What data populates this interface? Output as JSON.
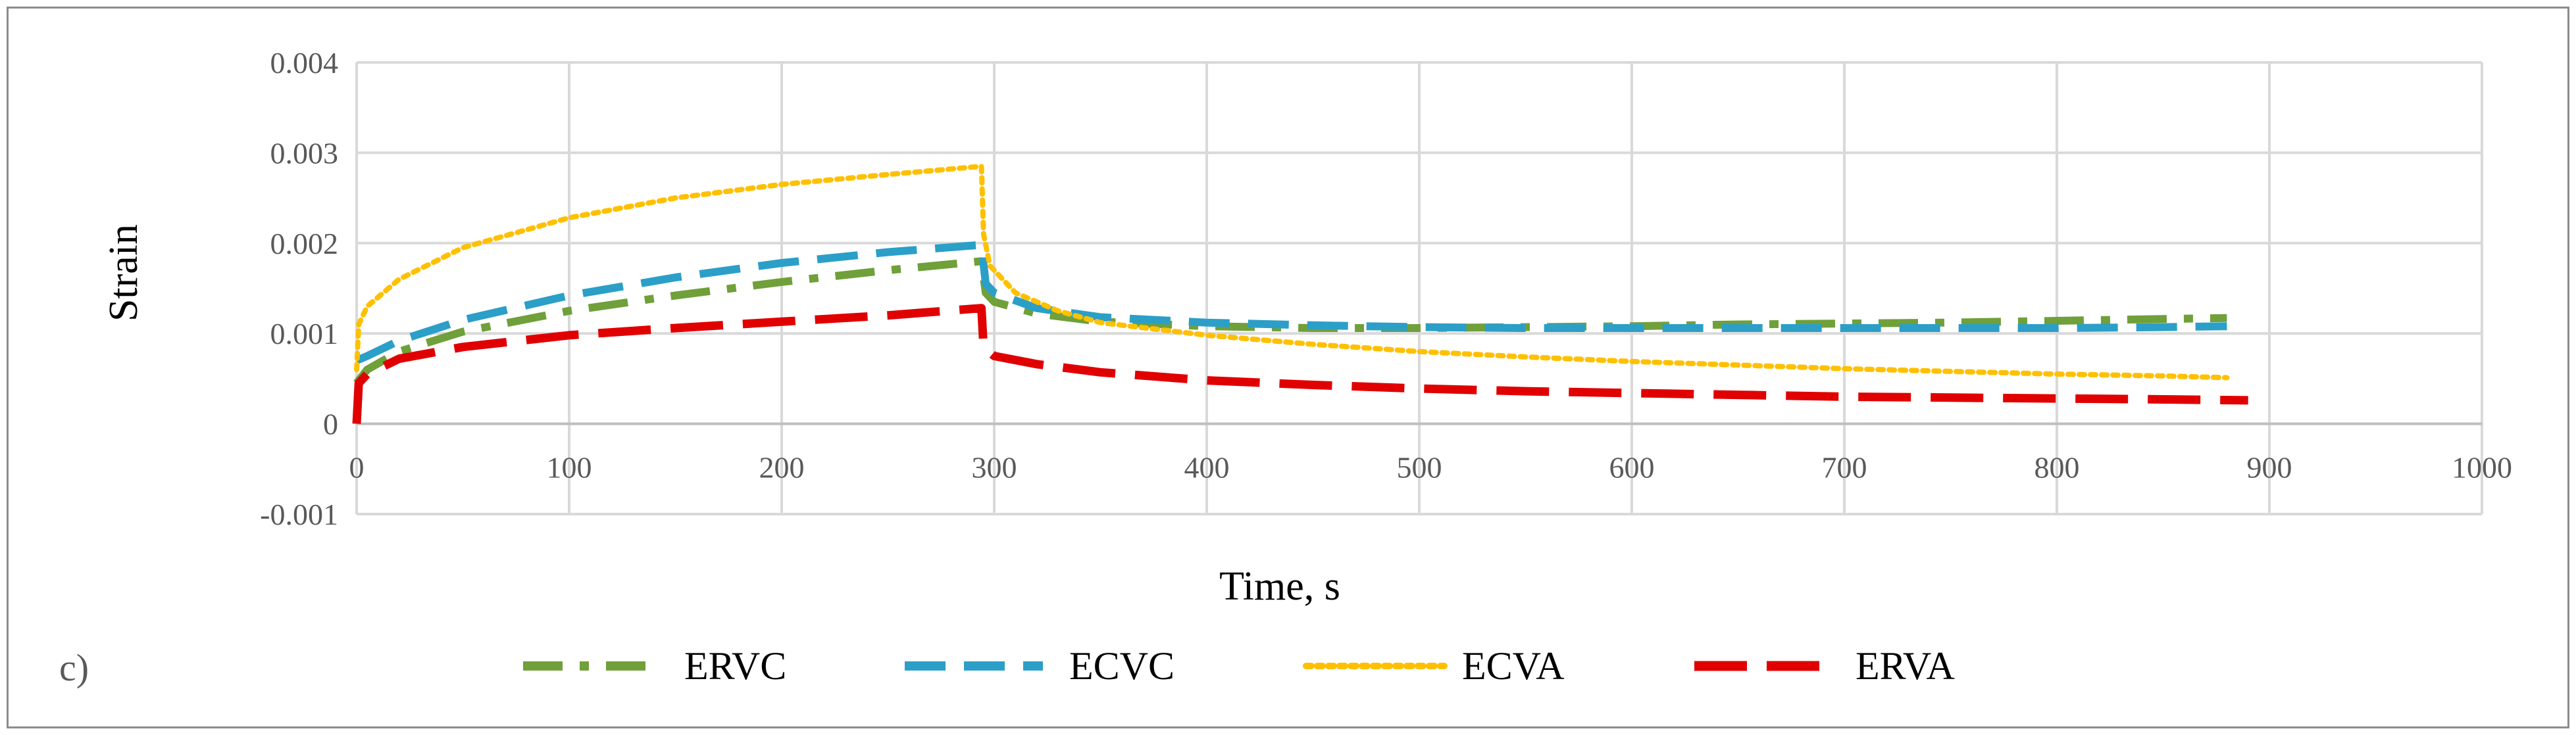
{
  "panel_label": "c)",
  "chart_data": {
    "type": "line",
    "title": "",
    "xlabel": "Time, s",
    "ylabel": "Strain",
    "xlim": [
      0,
      1000
    ],
    "ylim": [
      -0.001,
      0.004
    ],
    "x_ticks": [
      0,
      100,
      200,
      300,
      400,
      500,
      600,
      700,
      800,
      900,
      1000
    ],
    "x_tick_labels": [
      "0",
      "100",
      "200",
      "300",
      "400",
      "500",
      "600",
      "700",
      "800",
      "900",
      "1000"
    ],
    "y_ticks": [
      -0.001,
      0,
      0.001,
      0.002,
      0.003,
      0.004
    ],
    "y_tick_labels": [
      "-0.001",
      "0",
      "0.001",
      "0.002",
      "0.003",
      "0.004"
    ],
    "grid": true,
    "legend_position": "bottom",
    "series": [
      {
        "name": "ERVC",
        "color": "#70a03a",
        "dash": "dash-dot",
        "points": [
          [
            0,
            0.00045
          ],
          [
            5,
            0.0006
          ],
          [
            20,
            0.0008
          ],
          [
            50,
            0.00102
          ],
          [
            100,
            0.00125
          ],
          [
            150,
            0.00142
          ],
          [
            200,
            0.00157
          ],
          [
            250,
            0.0017
          ],
          [
            294,
            0.0018
          ],
          [
            296,
            0.00145
          ],
          [
            300,
            0.00135
          ],
          [
            320,
            0.00122
          ],
          [
            350,
            0.00113
          ],
          [
            400,
            0.00108
          ],
          [
            450,
            0.00106
          ],
          [
            500,
            0.00106
          ],
          [
            550,
            0.00107
          ],
          [
            600,
            0.00108
          ],
          [
            650,
            0.0011
          ],
          [
            700,
            0.00111
          ],
          [
            750,
            0.00112
          ],
          [
            800,
            0.00114
          ],
          [
            850,
            0.00116
          ],
          [
            880,
            0.00117
          ]
        ]
      },
      {
        "name": "ECVC",
        "color": "#2b9fc7",
        "dash": "dash",
        "points": [
          [
            0,
            0.0007
          ],
          [
            5,
            0.00075
          ],
          [
            20,
            0.00092
          ],
          [
            50,
            0.00115
          ],
          [
            100,
            0.00142
          ],
          [
            150,
            0.00162
          ],
          [
            200,
            0.00178
          ],
          [
            250,
            0.0019
          ],
          [
            294,
            0.00198
          ],
          [
            296,
            0.00155
          ],
          [
            300,
            0.00145
          ],
          [
            320,
            0.00128
          ],
          [
            350,
            0.00118
          ],
          [
            400,
            0.00112
          ],
          [
            450,
            0.00109
          ],
          [
            500,
            0.00107
          ],
          [
            550,
            0.00106
          ],
          [
            600,
            0.00106
          ],
          [
            650,
            0.00106
          ],
          [
            700,
            0.00106
          ],
          [
            750,
            0.00106
          ],
          [
            800,
            0.00106
          ],
          [
            850,
            0.00107
          ],
          [
            880,
            0.00108
          ]
        ]
      },
      {
        "name": "ECVA",
        "color": "#ffc000",
        "dash": "dot",
        "points": [
          [
            0,
            0.0006
          ],
          [
            1,
            0.0011
          ],
          [
            5,
            0.0013
          ],
          [
            20,
            0.0016
          ],
          [
            50,
            0.00195
          ],
          [
            100,
            0.00228
          ],
          [
            150,
            0.0025
          ],
          [
            200,
            0.00265
          ],
          [
            250,
            0.00276
          ],
          [
            294,
            0.00285
          ],
          [
            295,
            0.0021
          ],
          [
            298,
            0.00175
          ],
          [
            310,
            0.00145
          ],
          [
            330,
            0.00125
          ],
          [
            350,
            0.00112
          ],
          [
            400,
            0.00098
          ],
          [
            450,
            0.00088
          ],
          [
            500,
            0.0008
          ],
          [
            550,
            0.00074
          ],
          [
            600,
            0.00069
          ],
          [
            650,
            0.00065
          ],
          [
            700,
            0.00061
          ],
          [
            750,
            0.00058
          ],
          [
            800,
            0.00055
          ],
          [
            850,
            0.00053
          ],
          [
            880,
            0.00051
          ]
        ]
      },
      {
        "name": "ERVA",
        "color": "#e00000",
        "dash": "longdash",
        "points": [
          [
            0,
            0
          ],
          [
            1,
            0.00045
          ],
          [
            5,
            0.00055
          ],
          [
            20,
            0.00072
          ],
          [
            50,
            0.00085
          ],
          [
            100,
            0.00098
          ],
          [
            150,
            0.00106
          ],
          [
            200,
            0.00113
          ],
          [
            250,
            0.0012
          ],
          [
            294,
            0.00128
          ],
          [
            295,
            0.00085
          ],
          [
            300,
            0.00075
          ],
          [
            320,
            0.00066
          ],
          [
            350,
            0.00057
          ],
          [
            400,
            0.00048
          ],
          [
            450,
            0.00043
          ],
          [
            500,
            0.00039
          ],
          [
            550,
            0.00036
          ],
          [
            600,
            0.00034
          ],
          [
            650,
            0.00032
          ],
          [
            700,
            0.0003
          ],
          [
            750,
            0.00029
          ],
          [
            800,
            0.00028
          ],
          [
            850,
            0.00027
          ],
          [
            890,
            0.00026
          ]
        ]
      }
    ]
  }
}
